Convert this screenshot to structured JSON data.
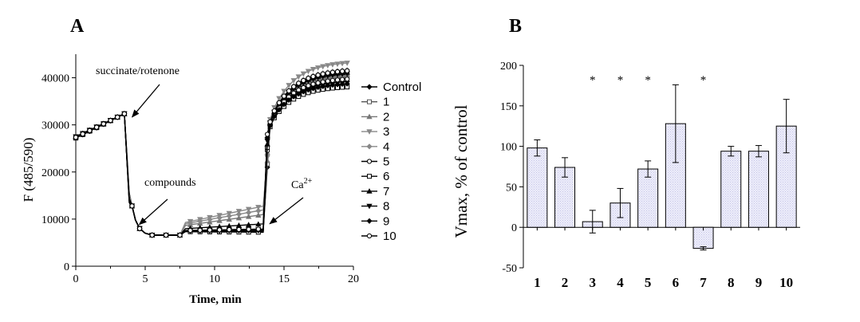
{
  "chart_data": [
    {
      "panel": "A",
      "type": "line",
      "xlabel": "Time, min",
      "ylabel": "F (485/590)",
      "xlim": [
        0,
        20
      ],
      "ylim": [
        0,
        45000
      ],
      "x_ticks": [
        "0",
        "5",
        "10",
        "15",
        "20"
      ],
      "y_ticks": [
        "0",
        "10000",
        "20000",
        "30000",
        "40000"
      ],
      "annotations": [
        {
          "text": "succinate/rotenone",
          "x": 3.6,
          "y": 32500
        },
        {
          "text": "compounds",
          "x": 4.4,
          "y": 8500
        },
        {
          "text": "Ca",
          "sup": "2+",
          "x": 13.8,
          "y": 9000
        }
      ],
      "legend_position": "right",
      "series": [
        {
          "name": "Control",
          "marker": "diamond",
          "color": "#000000",
          "plateau": 7500,
          "final": 39500
        },
        {
          "name": "1",
          "marker": "square",
          "color": "#555555",
          "plateau": 7600,
          "final": 40500
        },
        {
          "name": "2",
          "marker": "triangle",
          "color": "#777777",
          "plateau": 11000,
          "final": 41000
        },
        {
          "name": "3",
          "marker": "triangle-down",
          "color": "#888888",
          "plateau": 12800,
          "final": 43500
        },
        {
          "name": "4",
          "marker": "diamond",
          "color": "#888888",
          "plateau": 12000,
          "final": 42000
        },
        {
          "name": "5",
          "marker": "circle",
          "color": "#000000",
          "plateau": 7400,
          "final": 40000
        },
        {
          "name": "6",
          "marker": "square",
          "color": "#000000",
          "plateau": 7200,
          "final": 38300
        },
        {
          "name": "7",
          "marker": "triangle",
          "color": "#000000",
          "plateau": 9000,
          "final": 41500
        },
        {
          "name": "8",
          "marker": "triangle-down",
          "color": "#000000",
          "plateau": 7800,
          "final": 41200
        },
        {
          "name": "9",
          "marker": "diamond",
          "color": "#000000",
          "plateau": 7600,
          "final": 39000
        },
        {
          "name": "10",
          "marker": "circle",
          "color": "#000000",
          "plateau": 7900,
          "final": 41800
        }
      ]
    },
    {
      "panel": "B",
      "type": "bar",
      "ylabel": "Vmax, % of control",
      "ylim": [
        -50,
        200
      ],
      "y_ticks": [
        "-50",
        "0",
        "50",
        "100",
        "150",
        "200"
      ],
      "categories": [
        "1",
        "2",
        "3",
        "4",
        "5",
        "6",
        "7",
        "8",
        "9",
        "10"
      ],
      "values": [
        98,
        74,
        7,
        30,
        72,
        128,
        -26,
        94,
        94,
        125
      ],
      "errors": [
        10,
        12,
        14,
        18,
        10,
        48,
        2,
        6,
        7,
        33
      ],
      "significant": [
        false,
        false,
        true,
        true,
        true,
        false,
        true,
        false,
        false,
        false
      ],
      "significance_symbol": "*",
      "bar_fill": "#e6e6fa"
    }
  ]
}
